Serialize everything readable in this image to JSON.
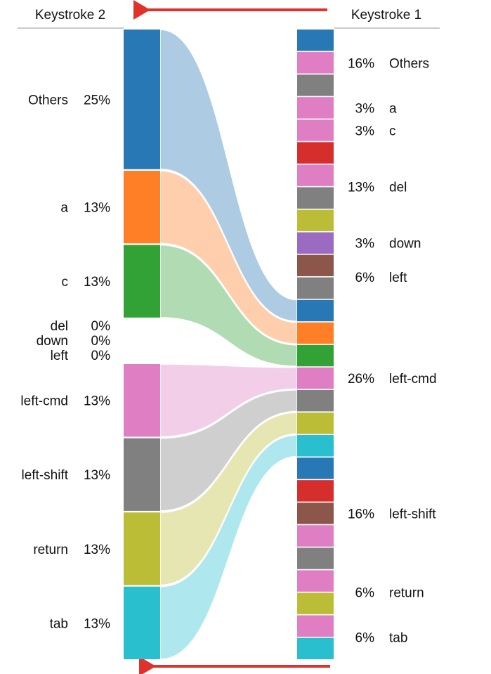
{
  "headers": {
    "left": "Keystroke 2",
    "right": "Keystroke 1"
  },
  "colors": {
    "blue": "#2878b5",
    "orange": "#fe7f26",
    "green": "#33a236",
    "pink": "#e07ec3",
    "gray": "#808080",
    "olive": "#bcbd37",
    "cyan": "#29bfcf",
    "red": "#d62d2d",
    "brown": "#8c564b",
    "purple": "#9a6bc0",
    "arrow": "#e0312a"
  },
  "left_nodes": [
    {
      "label": "Others",
      "pct": "25%",
      "value": 25,
      "color": "blue"
    },
    {
      "label": "a",
      "pct": "13%",
      "value": 13,
      "color": "orange"
    },
    {
      "label": "c",
      "pct": "13%",
      "value": 13,
      "color": "green"
    },
    {
      "label": "del",
      "pct": "0%",
      "value": 0,
      "color": "pink"
    },
    {
      "label": "down",
      "pct": "0%",
      "value": 0,
      "color": "pink"
    },
    {
      "label": "left",
      "pct": "0%",
      "value": 0,
      "color": "pink"
    },
    {
      "label": "left-cmd",
      "pct": "13%",
      "value": 13,
      "color": "pink"
    },
    {
      "label": "left-shift",
      "pct": "13%",
      "value": 13,
      "color": "gray"
    },
    {
      "label": "return",
      "pct": "13%",
      "value": 13,
      "color": "olive"
    },
    {
      "label": "tab",
      "pct": "13%",
      "value": 13,
      "color": "cyan"
    }
  ],
  "right_groups": [
    {
      "label": "Others",
      "pct": "16%",
      "segments": [
        "blue",
        "pink",
        "gray"
      ]
    },
    {
      "label": "a",
      "pct": "3%",
      "segments": [
        "pink"
      ]
    },
    {
      "label": "c",
      "pct": "3%",
      "segments": [
        "pink"
      ]
    },
    {
      "label": "del",
      "pct": "13%",
      "segments": [
        "red",
        "pink",
        "gray",
        "olive"
      ]
    },
    {
      "label": "down",
      "pct": "3%",
      "segments": [
        "purple"
      ]
    },
    {
      "label": "left",
      "pct": "6%",
      "segments": [
        "brown",
        "gray"
      ]
    },
    {
      "label": "left-cmd",
      "pct": "26%",
      "segments": [
        "blue",
        "orange",
        "green",
        "pink",
        "gray",
        "olive",
        "cyan"
      ]
    },
    {
      "label": "left-shift",
      "pct": "16%",
      "segments": [
        "blue",
        "red",
        "brown",
        "pink",
        "gray"
      ]
    },
    {
      "label": "return",
      "pct": "6%",
      "segments": [
        "pink",
        "olive"
      ]
    },
    {
      "label": "tab",
      "pct": "6%",
      "segments": [
        "pink",
        "cyan"
      ]
    }
  ],
  "flows": [
    {
      "from": "Others",
      "to": "left-cmd",
      "color": "blue"
    },
    {
      "from": "a",
      "to": "left-cmd",
      "color": "orange"
    },
    {
      "from": "c",
      "to": "left-cmd",
      "color": "green"
    },
    {
      "from": "left-cmd",
      "to": "left-cmd",
      "color": "pink"
    },
    {
      "from": "left-shift",
      "to": "left-cmd",
      "color": "gray"
    },
    {
      "from": "return",
      "to": "left-cmd",
      "color": "olive"
    },
    {
      "from": "tab",
      "to": "left-cmd",
      "color": "cyan"
    }
  ]
}
